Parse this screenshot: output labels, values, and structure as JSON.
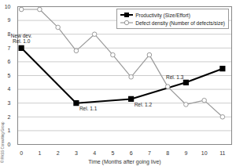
{
  "chart_data": {
    "type": "line",
    "x_label": "Time (Months after going live)",
    "caption": "© PASS Consulting Group",
    "xlim": [
      -0.2,
      11.5
    ],
    "xticks": [
      0,
      1,
      2,
      3,
      4,
      5,
      6,
      7,
      8,
      9,
      10,
      11
    ],
    "ylim": [
      0,
      10
    ],
    "yticks": [
      0,
      1,
      2,
      3,
      4,
      5,
      6,
      7,
      8,
      9,
      10
    ],
    "grid": true,
    "legend": "upper right",
    "series": [
      {
        "name": "Productivity (Size/Effort)",
        "color": "#000000",
        "marker": "square",
        "line_style": "solid",
        "x": [
          0,
          3,
          6,
          9,
          11
        ],
        "values": [
          7,
          3,
          3.3,
          4.5,
          5.5
        ]
      },
      {
        "name": "Defect density (Number of defects/size)",
        "color": "#9a9a9a",
        "marker": "circle",
        "line_style": "solid",
        "x": [
          0,
          1,
          2,
          3,
          4,
          5,
          6,
          7,
          8,
          9,
          10,
          11
        ],
        "values": [
          9.8,
          9.8,
          8.5,
          6.8,
          8,
          6.5,
          4.9,
          6.5,
          4.2,
          2.9,
          3.2,
          2
        ]
      }
    ],
    "annotations": [
      {
        "text": "New dev.\nRel. 1.0",
        "x": 0,
        "y": 7
      },
      {
        "text": "Rel. 1.1",
        "x": 3,
        "y": 3
      },
      {
        "text": "Rel. 1.2",
        "x": 6,
        "y": 3.3
      },
      {
        "text": "Rel. 1.3",
        "x": 9,
        "y": 4.5
      }
    ]
  }
}
